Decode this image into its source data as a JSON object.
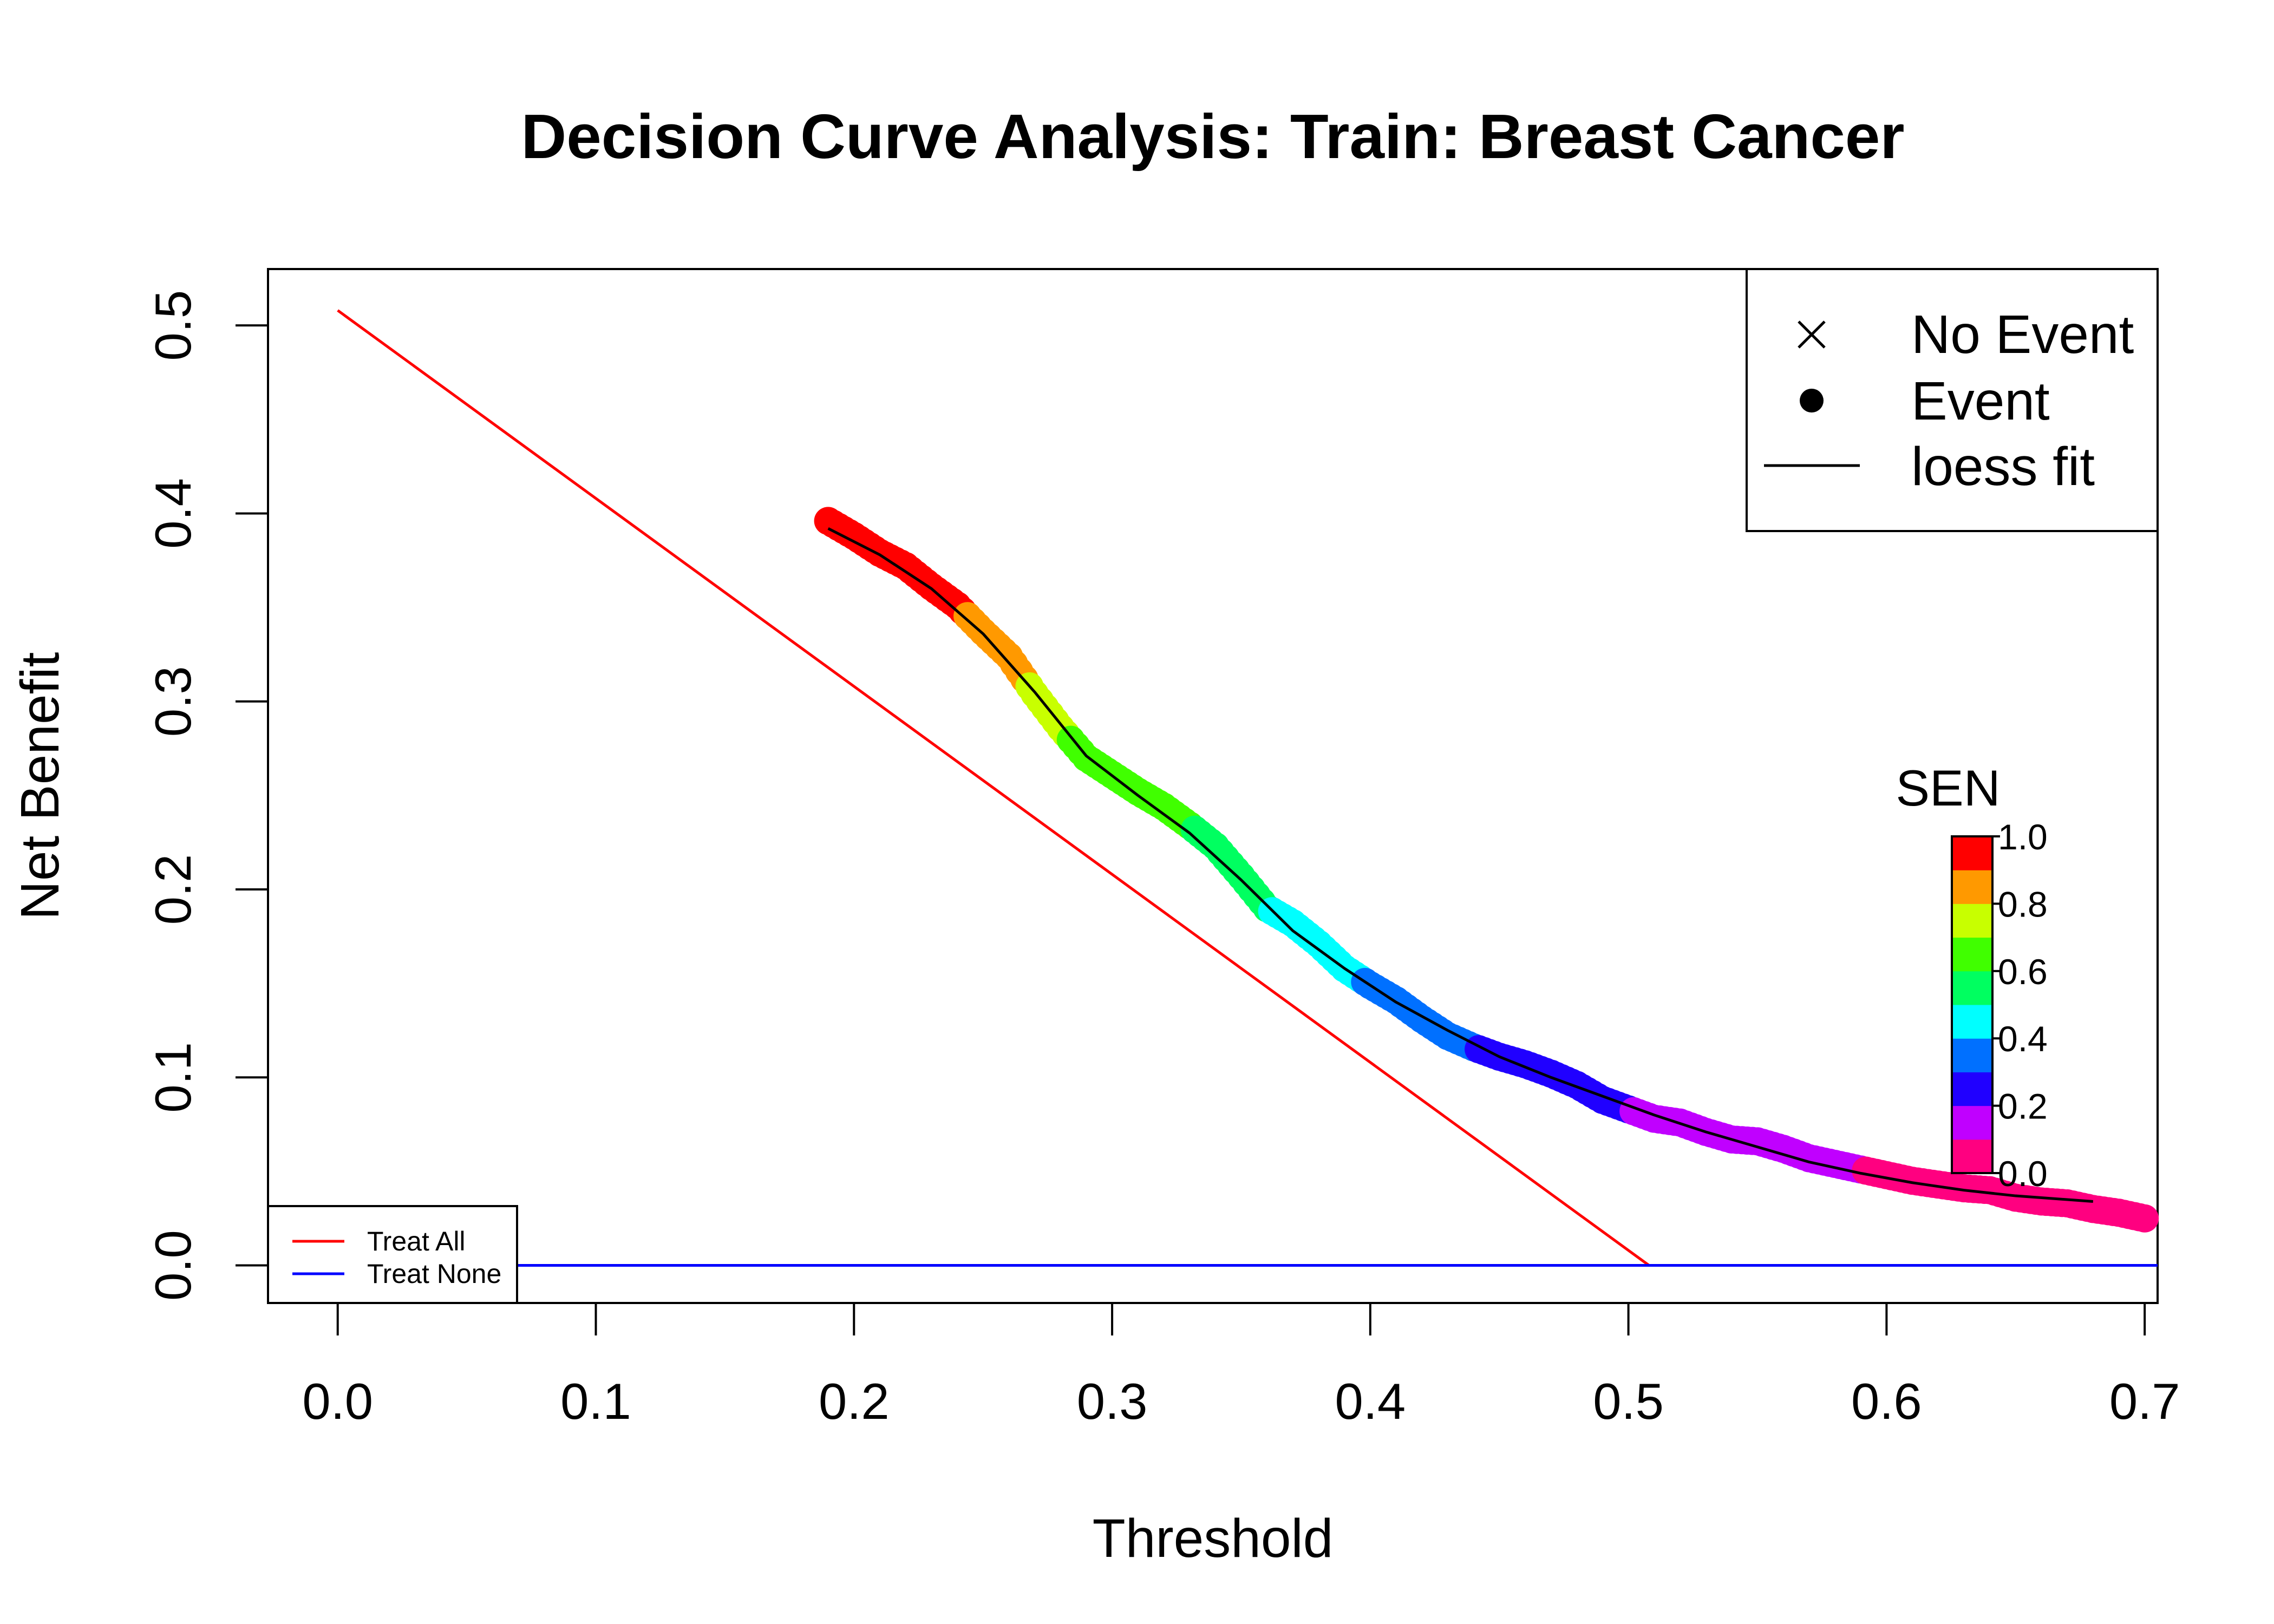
{
  "chart_data": {
    "type": "line",
    "title": "Decision Curve Analysis: Train: Breast Cancer",
    "xlabel": "Threshold",
    "ylabel": "Net Benefit",
    "xlim": [
      -0.027,
      0.705
    ],
    "ylim": [
      -0.02,
      0.53
    ],
    "x_ticks": [
      "0.0",
      "0.1",
      "0.2",
      "0.3",
      "0.4",
      "0.5",
      "0.6",
      "0.7"
    ],
    "y_ticks": [
      "0.0",
      "0.1",
      "0.2",
      "0.3",
      "0.4",
      "0.5"
    ],
    "grid": false,
    "series": [
      {
        "name": "Treat All",
        "color": "#ff0000",
        "x": [
          0.0,
          0.508
        ],
        "y": [
          0.508,
          0.0
        ]
      },
      {
        "name": "Treat None",
        "color": "#0000ff",
        "x": [
          0.0,
          0.705
        ],
        "y": [
          0.0,
          0.0
        ]
      },
      {
        "name": "loess fit",
        "color": "#000000",
        "x": [
          0.19,
          0.21,
          0.23,
          0.25,
          0.27,
          0.29,
          0.31,
          0.33,
          0.35,
          0.37,
          0.39,
          0.41,
          0.43,
          0.45,
          0.47,
          0.49,
          0.51,
          0.53,
          0.55,
          0.57,
          0.59,
          0.61,
          0.63,
          0.65,
          0.68
        ],
        "y": [
          0.392,
          0.378,
          0.36,
          0.336,
          0.305,
          0.271,
          0.25,
          0.23,
          0.205,
          0.178,
          0.158,
          0.14,
          0.125,
          0.111,
          0.1,
          0.09,
          0.08,
          0.071,
          0.063,
          0.055,
          0.049,
          0.044,
          0.04,
          0.037,
          0.034
        ]
      }
    ],
    "event_points": {
      "x": [
        0.19,
        0.2,
        0.21,
        0.22,
        0.23,
        0.24,
        0.25,
        0.26,
        0.27,
        0.28,
        0.29,
        0.3,
        0.31,
        0.32,
        0.33,
        0.34,
        0.35,
        0.36,
        0.37,
        0.38,
        0.39,
        0.4,
        0.41,
        0.42,
        0.43,
        0.44,
        0.45,
        0.46,
        0.47,
        0.48,
        0.49,
        0.5,
        0.51,
        0.52,
        0.53,
        0.54,
        0.55,
        0.56,
        0.57,
        0.58,
        0.59,
        0.6,
        0.61,
        0.62,
        0.63,
        0.64,
        0.65,
        0.66,
        0.67,
        0.68,
        0.69,
        0.7
      ],
      "y": [
        0.396,
        0.388,
        0.379,
        0.372,
        0.361,
        0.351,
        0.337,
        0.324,
        0.304,
        0.286,
        0.27,
        0.261,
        0.252,
        0.244,
        0.234,
        0.223,
        0.207,
        0.19,
        0.182,
        0.171,
        0.158,
        0.149,
        0.141,
        0.131,
        0.122,
        0.116,
        0.111,
        0.107,
        0.102,
        0.096,
        0.088,
        0.083,
        0.078,
        0.076,
        0.071,
        0.067,
        0.066,
        0.062,
        0.057,
        0.054,
        0.051,
        0.048,
        0.045,
        0.043,
        0.041,
        0.04,
        0.036,
        0.034,
        0.033,
        0.03,
        0.028,
        0.025
      ],
      "sen": [
        0.97,
        0.96,
        0.95,
        0.93,
        0.92,
        0.91,
        0.88,
        0.85,
        0.77,
        0.72,
        0.66,
        0.65,
        0.63,
        0.62,
        0.6,
        0.57,
        0.53,
        0.5,
        0.47,
        0.45,
        0.43,
        0.39,
        0.37,
        0.35,
        0.32,
        0.3,
        0.27,
        0.26,
        0.25,
        0.23,
        0.21,
        0.2,
        0.19,
        0.18,
        0.16,
        0.15,
        0.14,
        0.13,
        0.12,
        0.11,
        0.1,
        0.09,
        0.09,
        0.08,
        0.07,
        0.06,
        0.05,
        0.04,
        0.03,
        0.02,
        0.02,
        0.01
      ]
    },
    "legend_main": {
      "position": "top-right",
      "items": [
        {
          "symbol": "cross",
          "label": "No Event"
        },
        {
          "symbol": "dot",
          "label": "Event"
        },
        {
          "symbol": "line",
          "label": "loess fit"
        }
      ]
    },
    "legend_lines": {
      "position": "bottom-left",
      "items": [
        {
          "label": "Treat All",
          "color": "#ff0000"
        },
        {
          "label": "Treat None",
          "color": "#0000ff"
        }
      ]
    },
    "colorbar": {
      "title": "SEN",
      "ticks": [
        "0.0",
        "0.2",
        "0.4",
        "0.6",
        "0.8",
        "1.0"
      ],
      "colors": [
        "#ff0080",
        "#c000ff",
        "#2000ff",
        "#0070ff",
        "#00ffff",
        "#00ff60",
        "#40ff00",
        "#c8ff00",
        "#ff9900",
        "#ff0000"
      ]
    }
  }
}
